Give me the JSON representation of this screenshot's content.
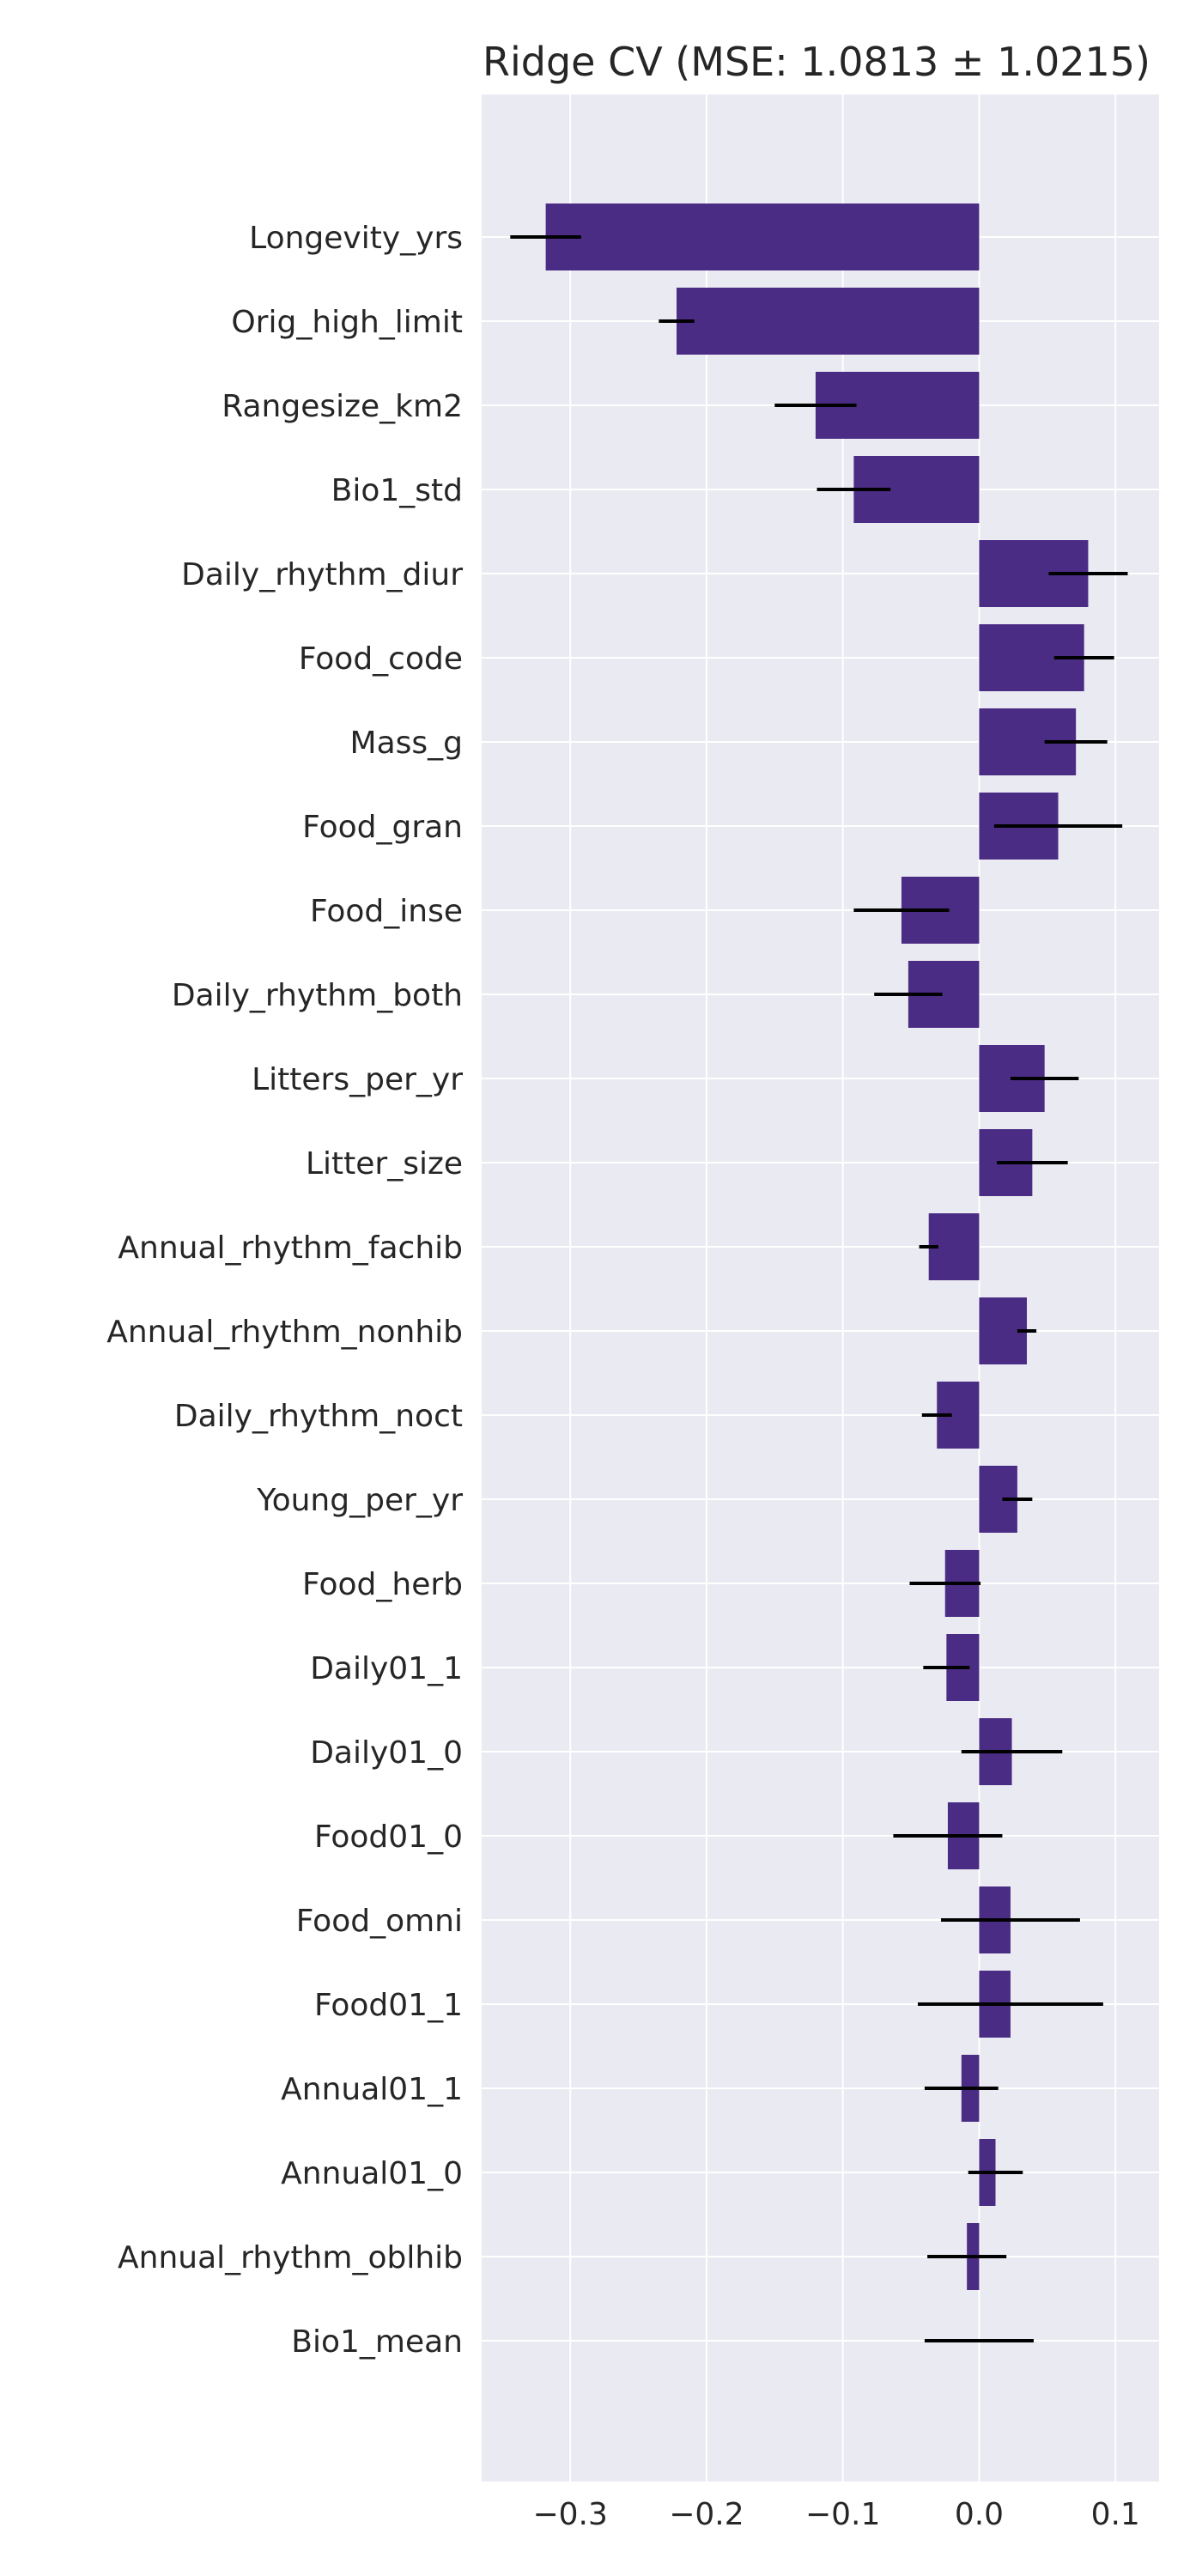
{
  "chart_data": {
    "type": "bar",
    "orientation": "horizontal",
    "title": "Ridge CV (MSE: 1.0813 ± 1.0215)",
    "xlabel": "",
    "ylabel": "",
    "xlim": [
      -0.365,
      0.132
    ],
    "xticks": [
      -0.3,
      -0.2,
      -0.1,
      0.0,
      0.1
    ],
    "xtick_labels": [
      "−0.3",
      "−0.2",
      "−0.1",
      "0.0",
      "0.1"
    ],
    "grid": true,
    "bar_color": "#4b2c85",
    "errorbar_color": "#000000",
    "background_color": "#eaeaf2",
    "grid_color": "#ffffff",
    "categories": [
      "Longevity_yrs",
      "Orig_high_limit",
      "Rangesize_km2",
      "Bio1_std",
      "Daily_rhythm_diur",
      "Food_code",
      "Mass_g",
      "Food_gran",
      "Food_inse",
      "Daily_rhythm_both",
      "Litters_per_yr",
      "Litter_size",
      "Annual_rhythm_fachib",
      "Annual_rhythm_nonhib",
      "Daily_rhythm_noct",
      "Young_per_yr",
      "Food_herb",
      "Daily01_1",
      "Daily01_0",
      "Food01_0",
      "Food_omni",
      "Food01_1",
      "Annual01_1",
      "Annual01_0",
      "Annual_rhythm_oblhib",
      "Bio1_mean"
    ],
    "values": [
      -0.318,
      -0.222,
      -0.12,
      -0.092,
      0.08,
      0.077,
      0.071,
      0.058,
      -0.057,
      -0.052,
      0.048,
      0.039,
      -0.037,
      0.035,
      -0.031,
      0.028,
      -0.025,
      -0.024,
      0.024,
      -0.023,
      0.023,
      0.023,
      -0.013,
      0.012,
      -0.009,
      0.0
    ],
    "errors": [
      0.026,
      0.013,
      0.03,
      0.027,
      0.029,
      0.022,
      0.023,
      0.047,
      0.035,
      0.025,
      0.025,
      0.026,
      0.007,
      0.007,
      0.011,
      0.011,
      0.026,
      0.017,
      0.037,
      0.04,
      0.051,
      0.068,
      0.027,
      0.02,
      0.029,
      0.04
    ]
  }
}
